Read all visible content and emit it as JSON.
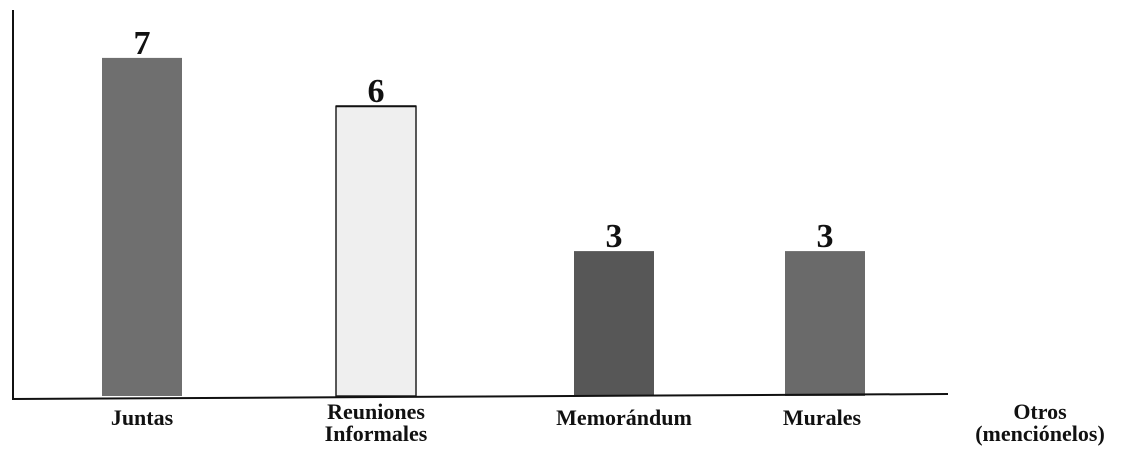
{
  "chart_data": {
    "type": "bar",
    "categories": [
      [
        "Juntas"
      ],
      [
        "Reuniones",
        "Informales"
      ],
      [
        "Memorándum"
      ],
      [
        "Murales"
      ],
      [
        "Otros",
        "(menciónelos)"
      ]
    ],
    "values": [
      7,
      6,
      3,
      3,
      null
    ],
    "value_labels": [
      "7",
      "6",
      "3",
      "3",
      ""
    ],
    "bar_colors": [
      "#6f6f6f",
      "#efefef",
      "#575757",
      "#6a6a6a",
      null
    ],
    "ylim": [
      0,
      8
    ],
    "grid": false,
    "legend": "none",
    "title": "",
    "xlabel": "",
    "ylabel": ""
  }
}
